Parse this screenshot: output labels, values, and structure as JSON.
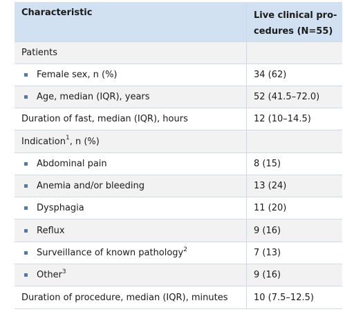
{
  "header": {
    "col1": "Characteristic",
    "col2_line1": "Live clinical pro-",
    "col2_line2": "cedures (N=55)"
  },
  "rows": [
    {
      "label": "Patients",
      "value": ""
    },
    {
      "label": "Female sex, n (%)",
      "value": "34 (62)"
    },
    {
      "label": "Age, median (IQR), years",
      "value": "52 (41.5–72.0)"
    },
    {
      "label": "Duration of fast, median (IQR), hours",
      "value": "12 (10–14.5)"
    },
    {
      "label": "Indication",
      "sup": "1",
      "label_suffix": ", n (%)",
      "value": ""
    },
    {
      "label": "Abdominal pain",
      "value": "8 (15)"
    },
    {
      "label": "Anemia and/or bleeding",
      "value": "13 (24)"
    },
    {
      "label": "Dysphagia",
      "value": "11 (20)"
    },
    {
      "label": "Reflux",
      "value": "9 (16)"
    },
    {
      "label": "Surveillance of known pathology",
      "sup": "2",
      "value": "7 (13)"
    },
    {
      "label": "Other",
      "sup": "3",
      "value": "9 (16)"
    },
    {
      "label": "Duration of procedure, median (IQR), minutes",
      "value": "10 (7.5–12.5)"
    }
  ],
  "colors": {
    "header_bg": "#d1e1f1",
    "stripe_bg": "#f2f2f2",
    "bullet": "#4a7bb7"
  }
}
